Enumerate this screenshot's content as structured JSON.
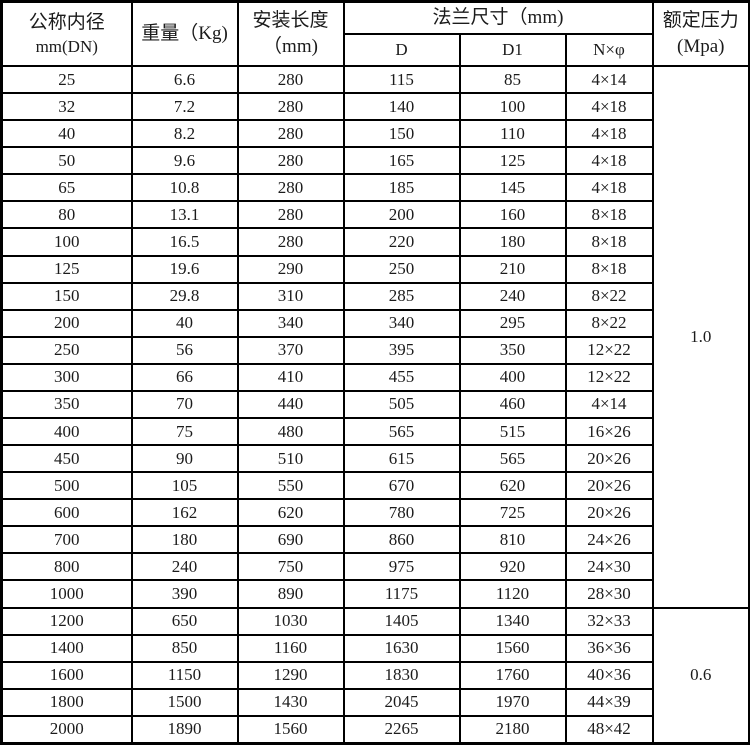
{
  "page": {
    "background_color": "#ffffff",
    "border_color": "#000000",
    "text_color": "#1b1b1b"
  },
  "table": {
    "header": {
      "dn_line1": "公称内径",
      "dn_line2": "mm(DN)",
      "weight": "重量（Kg)",
      "length_line1": "安装长度",
      "length_line2": "（mm)",
      "flange_group": "法兰尺寸（mm)",
      "flange_d": "D",
      "flange_d1": "D1",
      "flange_nphi": "N×φ",
      "pressure_line1": "额定压力",
      "pressure_line2": "(Mpa)"
    },
    "rows": [
      {
        "dn": "25",
        "weight": "6.6",
        "length": "280",
        "d": "115",
        "d1": "85",
        "nphi": "4×14"
      },
      {
        "dn": "32",
        "weight": "7.2",
        "length": "280",
        "d": "140",
        "d1": "100",
        "nphi": "4×18"
      },
      {
        "dn": "40",
        "weight": "8.2",
        "length": "280",
        "d": "150",
        "d1": "110",
        "nphi": "4×18"
      },
      {
        "dn": "50",
        "weight": "9.6",
        "length": "280",
        "d": "165",
        "d1": "125",
        "nphi": "4×18"
      },
      {
        "dn": "65",
        "weight": "10.8",
        "length": "280",
        "d": "185",
        "d1": "145",
        "nphi": "4×18"
      },
      {
        "dn": "80",
        "weight": "13.1",
        "length": "280",
        "d": "200",
        "d1": "160",
        "nphi": "8×18"
      },
      {
        "dn": "100",
        "weight": "16.5",
        "length": "280",
        "d": "220",
        "d1": "180",
        "nphi": "8×18"
      },
      {
        "dn": "125",
        "weight": "19.6",
        "length": "290",
        "d": "250",
        "d1": "210",
        "nphi": "8×18"
      },
      {
        "dn": "150",
        "weight": "29.8",
        "length": "310",
        "d": "285",
        "d1": "240",
        "nphi": "8×22"
      },
      {
        "dn": "200",
        "weight": "40",
        "length": "340",
        "d": "340",
        "d1": "295",
        "nphi": "8×22"
      },
      {
        "dn": "250",
        "weight": "56",
        "length": "370",
        "d": "395",
        "d1": "350",
        "nphi": "12×22"
      },
      {
        "dn": "300",
        "weight": "66",
        "length": "410",
        "d": "455",
        "d1": "400",
        "nphi": "12×22"
      },
      {
        "dn": "350",
        "weight": "70",
        "length": "440",
        "d": "505",
        "d1": "460",
        "nphi": "4×14"
      },
      {
        "dn": "400",
        "weight": "75",
        "length": "480",
        "d": "565",
        "d1": "515",
        "nphi": "16×26"
      },
      {
        "dn": "450",
        "weight": "90",
        "length": "510",
        "d": "615",
        "d1": "565",
        "nphi": "20×26"
      },
      {
        "dn": "500",
        "weight": "105",
        "length": "550",
        "d": "670",
        "d1": "620",
        "nphi": "20×26"
      },
      {
        "dn": "600",
        "weight": "162",
        "length": "620",
        "d": "780",
        "d1": "725",
        "nphi": "20×26"
      },
      {
        "dn": "700",
        "weight": "180",
        "length": "690",
        "d": "860",
        "d1": "810",
        "nphi": "24×26"
      },
      {
        "dn": "800",
        "weight": "240",
        "length": "750",
        "d": "975",
        "d1": "920",
        "nphi": "24×30"
      },
      {
        "dn": "1000",
        "weight": "390",
        "length": "890",
        "d": "1175",
        "d1": "1120",
        "nphi": "28×30"
      },
      {
        "dn": "1200",
        "weight": "650",
        "length": "1030",
        "d": "1405",
        "d1": "1340",
        "nphi": "32×33"
      },
      {
        "dn": "1400",
        "weight": "850",
        "length": "1160",
        "d": "1630",
        "d1": "1560",
        "nphi": "36×36"
      },
      {
        "dn": "1600",
        "weight": "1150",
        "length": "1290",
        "d": "1830",
        "d1": "1760",
        "nphi": "40×36"
      },
      {
        "dn": "1800",
        "weight": "1500",
        "length": "1430",
        "d": "2045",
        "d1": "1970",
        "nphi": "44×39"
      },
      {
        "dn": "2000",
        "weight": "1890",
        "length": "1560",
        "d": "2265",
        "d1": "2180",
        "nphi": "48×42"
      }
    ],
    "pressure_groups": [
      {
        "value": "1.0",
        "row_start": 0,
        "row_count": 20
      },
      {
        "value": "0.6",
        "row_start": 20,
        "row_count": 5
      }
    ]
  }
}
